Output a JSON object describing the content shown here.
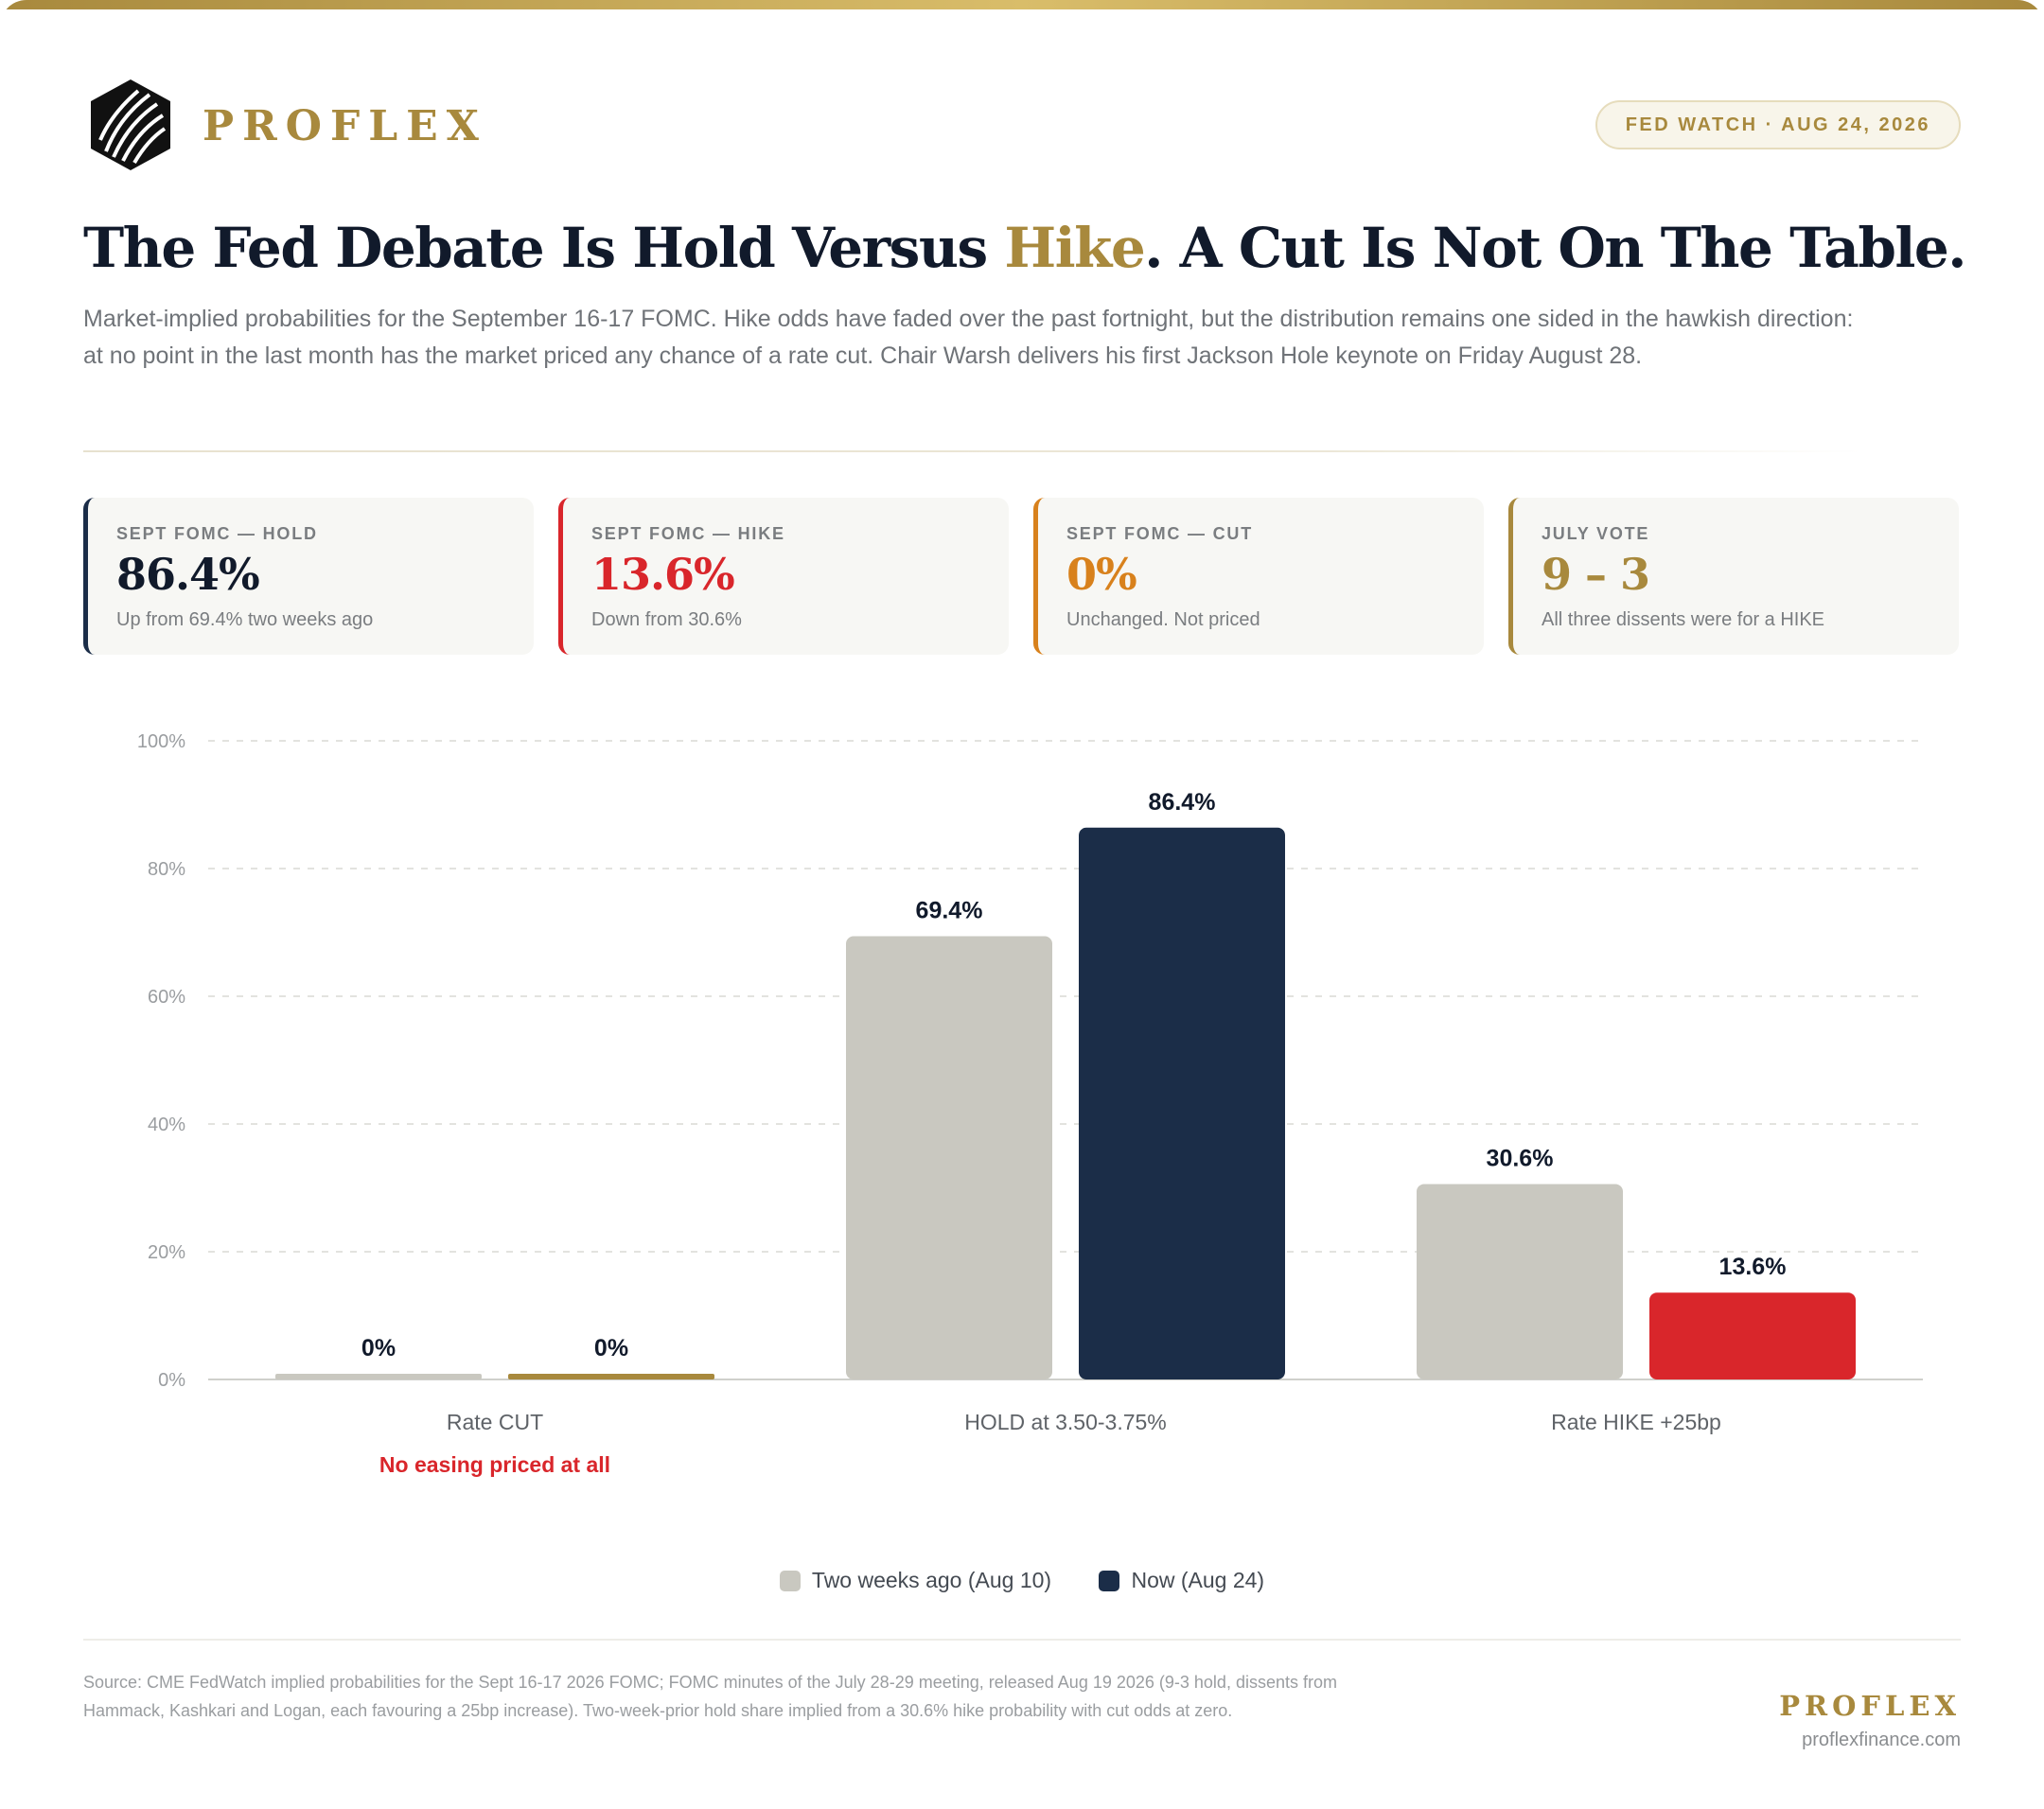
{
  "header": {
    "brand": "PROFLEX",
    "badge": "FED WATCH · AUG 24, 2026"
  },
  "title": {
    "before": "The Fed Debate Is Hold Versus ",
    "highlight": "Hike",
    "after": ". A Cut Is Not On The Table."
  },
  "subtitle": "Market-implied probabilities for the September 16-17 FOMC. Hike odds have faded over the past fortnight, but the distribution remains one sided in the hawkish direction: at no point in the last month has the market priced any chance of a rate cut. Chair Warsh delivers his first Jackson Hole keynote on Friday August 28.",
  "stats": [
    {
      "label": "SEPT FOMC — HOLD",
      "value": "86.4%",
      "note": "Up from 69.4% two weeks ago"
    },
    {
      "label": "SEPT FOMC — HIKE",
      "value": "13.6%",
      "note": "Down from 30.6%"
    },
    {
      "label": "SEPT FOMC — CUT",
      "value": "0%",
      "note": "Unchanged. Not priced"
    },
    {
      "label": "JULY VOTE",
      "value": "9 – 3",
      "note": "All three dissents were for a HIKE"
    }
  ],
  "chart_data": {
    "type": "bar",
    "categories": [
      "Rate CUT",
      "HOLD at 3.50-3.75%",
      "Rate HIKE +25bp"
    ],
    "category_notes": [
      "No easing priced at all",
      "",
      ""
    ],
    "series": [
      {
        "name": "Two weeks ago (Aug 10)",
        "values": [
          0,
          69.4,
          30.6
        ],
        "colors": [
          "#c9c8c0",
          "#c9c8c0",
          "#c9c8c0"
        ]
      },
      {
        "name": "Now (Aug 24)",
        "values": [
          0,
          86.4,
          13.6
        ],
        "colors": [
          "#a8893d",
          "#1b2d48",
          "#d9262b"
        ]
      }
    ],
    "value_labels": [
      [
        "0%",
        "69.4%",
        "30.6%"
      ],
      [
        "0%",
        "86.4%",
        "13.6%"
      ]
    ],
    "yticks": [
      "0%",
      "20%",
      "40%",
      "60%",
      "80%",
      "100%"
    ],
    "ylim": [
      0,
      100
    ],
    "grid": true,
    "legend": "bottom-center"
  },
  "footer": {
    "source": "Source: CME FedWatch implied probabilities for the Sept 16-17 2026 FOMC; FOMC minutes of the July 28-29 meeting, released Aug 19 2026 (9-3 hold, dissents from Hammack, Kashkari and Logan, each favouring a 25bp increase). Two-week-prior hold share implied from a 30.6% hike probability with cut odds at zero.",
    "brand": "PROFLEX",
    "website": "proflexfinance.com"
  }
}
